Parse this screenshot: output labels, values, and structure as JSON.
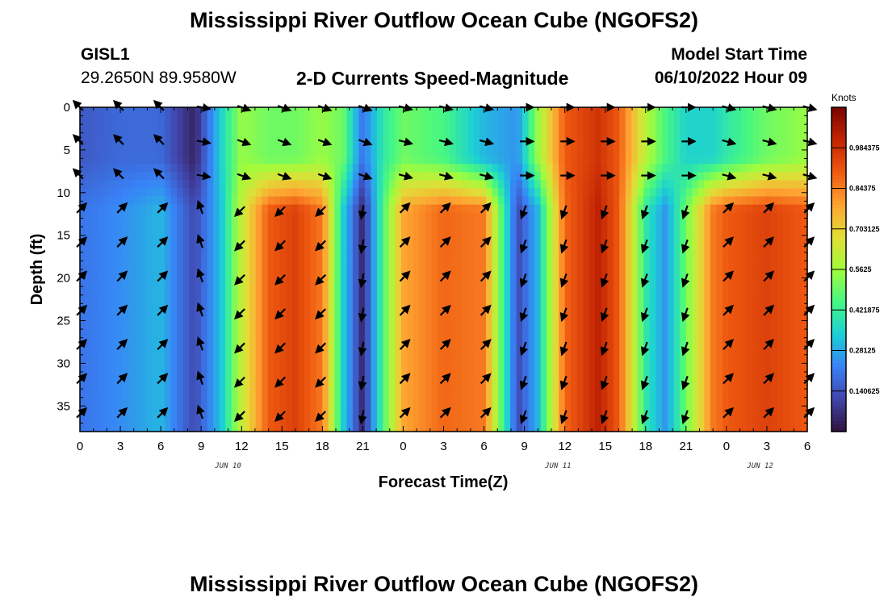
{
  "page": {
    "title_top": "Mississippi River Outflow Ocean Cube (NGOFS2)",
    "title_bottom": "Mississippi River Outflow Ocean Cube (NGOFS2)",
    "station_name": "GISL1",
    "coordinates": "29.2650N  89.9580W",
    "subtitle": "2-D Currents Speed-Magnitude",
    "model_start_label": "Model Start Time",
    "model_start_value": "06/10/2022 Hour 09"
  },
  "chart_data": {
    "type": "heatmap",
    "title": "2-D Currents Speed-Magnitude",
    "xlabel": "Forecast Time(Z)",
    "ylabel": "Depth (ft)",
    "x_ticks": [
      "0",
      "3",
      "6",
      "9",
      "12",
      "15",
      "18",
      "21",
      "0",
      "3",
      "6",
      "9",
      "12",
      "15",
      "18",
      "21",
      "0",
      "3",
      "6"
    ],
    "x_range_hours": [
      0,
      54
    ],
    "date_labels": [
      {
        "label": "JUN 10",
        "hour": 11
      },
      {
        "label": "JUN 11",
        "hour": 35.5
      },
      {
        "label": "JUN 12",
        "hour": 50.5
      }
    ],
    "y_ticks": [
      "0",
      "5",
      "10",
      "15",
      "20",
      "25",
      "30",
      "35"
    ],
    "y_range_ft": [
      0,
      38
    ],
    "colorbar": {
      "unit": "Knots",
      "range": [
        0,
        1.125
      ],
      "tick_labels": [
        "0.140625",
        "0.28125",
        "0.421875",
        "0.5625",
        "0.703125",
        "0.84375",
        "0.984375"
      ],
      "tick_values": [
        0.140625,
        0.28125,
        0.421875,
        0.5625,
        0.703125,
        0.84375,
        0.984375
      ]
    },
    "speed_model": {
      "time_hours": [
        0,
        3,
        6,
        8.5,
        10.5,
        12,
        14,
        16,
        18,
        19.5,
        21,
        22.5,
        24,
        27,
        30,
        32.5,
        34,
        36,
        38.5,
        40,
        42,
        43.5,
        45,
        47,
        48,
        51,
        54
      ],
      "deep_speed": [
        0.2,
        0.24,
        0.3,
        0.12,
        0.32,
        0.62,
        0.9,
        0.95,
        0.85,
        0.35,
        0.05,
        0.45,
        0.78,
        0.88,
        0.85,
        0.12,
        0.3,
        0.88,
        1.02,
        0.9,
        0.4,
        0.25,
        0.5,
        0.85,
        0.9,
        0.95,
        0.9
      ],
      "surface_speed": [
        0.15,
        0.18,
        0.18,
        0.04,
        0.35,
        0.55,
        0.5,
        0.5,
        0.55,
        0.5,
        0.2,
        0.4,
        0.5,
        0.45,
        0.3,
        0.25,
        0.55,
        0.9,
        0.98,
        0.9,
        0.6,
        0.45,
        0.35,
        0.35,
        0.4,
        0.5,
        0.55
      ]
    },
    "vector_depths_ft": [
      0,
      4,
      8,
      12,
      16,
      20,
      24,
      28,
      32,
      36
    ],
    "vector_times_hours": [
      0,
      3,
      6,
      9,
      12,
      15,
      18,
      21,
      24,
      27,
      30,
      33,
      36,
      39,
      42,
      45,
      48,
      51,
      54
    ],
    "vector_direction_model": [
      {
        "range_hours": [
          0,
          8
        ],
        "shallow_deg": 225,
        "deep_deg": 315
      },
      {
        "range_hours": [
          8,
          11
        ],
        "shallow_deg": 10,
        "deep_deg": 250
      },
      {
        "range_hours": [
          11,
          20
        ],
        "shallow_deg": 20,
        "deep_deg": 135
      },
      {
        "range_hours": [
          20,
          22.5
        ],
        "shallow_deg": 20,
        "deep_deg": 100
      },
      {
        "range_hours": [
          22.5,
          33
        ],
        "shallow_deg": 15,
        "deep_deg": 315
      },
      {
        "range_hours": [
          33,
          47
        ],
        "shallow_deg": 0,
        "deep_deg": 110
      },
      {
        "range_hours": [
          47,
          54
        ],
        "shallow_deg": 15,
        "deep_deg": 315
      }
    ]
  }
}
